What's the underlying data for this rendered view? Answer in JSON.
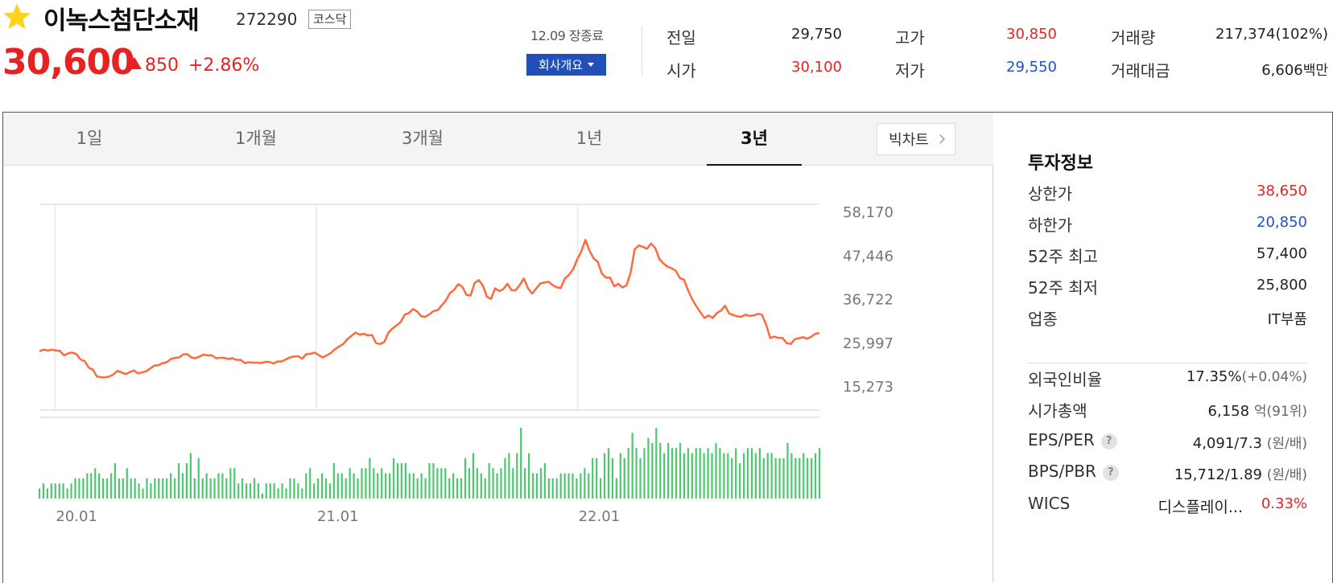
{
  "stock": {
    "name": "이녹스첨단소재",
    "code": "272290",
    "market": "코스닥",
    "price": "30,600",
    "change": "850",
    "change_pct": "+2.86%"
  },
  "status": {
    "market_status": "12.09 장종료",
    "company_button": "회사개요"
  },
  "quote": {
    "prev_close_label": "전일",
    "prev_close": "29,750",
    "open_label": "시가",
    "open": "30,100",
    "high_label": "고가",
    "high": "30,850",
    "low_label": "저가",
    "low": "29,550",
    "volume_label": "거래량",
    "volume": "217,374(102%)",
    "amount_label": "거래대금",
    "amount": "6,606",
    "amount_unit": "백만"
  },
  "tabs": [
    {
      "label": "1일"
    },
    {
      "label": "1개월"
    },
    {
      "label": "3개월"
    },
    {
      "label": "1년"
    },
    {
      "label": "3년"
    }
  ],
  "active_tab": "3년",
  "bigchart_label": "빅차트",
  "colors": {
    "up": "#e62222",
    "down": "#1d51c8",
    "line": "#ff6a3d",
    "volume": "#4cc96e",
    "accent_button": "#2151b8"
  },
  "chart_data": {
    "type": "line",
    "y_ticks": [
      "58,170",
      "47,446",
      "36,722",
      "25,997",
      "15,273"
    ],
    "x_ticks": [
      "20.01",
      "21.01",
      "22.01"
    ],
    "ylim": [
      15273,
      58170
    ],
    "price_series": [
      {
        "name": "",
        "values": [
          23800,
          24200,
          24000,
          24200,
          24000,
          23900,
          22800,
          23300,
          23500,
          23100,
          21800,
          21400,
          19800,
          19300,
          17600,
          17400,
          17400,
          17600,
          18100,
          19000,
          18600,
          18200,
          18700,
          19100,
          18400,
          18600,
          18900,
          19600,
          20300,
          20400,
          20900,
          21100,
          21900,
          22200,
          22300,
          23000,
          23100,
          22300,
          22100,
          22500,
          23000,
          22800,
          22800,
          22100,
          22200,
          22200,
          21900,
          22100,
          21700,
          21700,
          20900,
          21100,
          21000,
          21000,
          20900,
          21200,
          21200,
          20800,
          21300,
          21300,
          21800,
          22300,
          22500,
          22600,
          22000,
          23100,
          23200,
          23500,
          22900,
          22300,
          22800,
          23400,
          24300,
          25000,
          25600,
          26800,
          27600,
          28400,
          27900,
          28100,
          27700,
          27800,
          25800,
          25600,
          26100,
          28400,
          29400,
          30200,
          31000,
          32800,
          33200,
          34200,
          33600,
          32400,
          32300,
          32900,
          33700,
          33900,
          35100,
          36300,
          38100,
          38900,
          40300,
          39700,
          37700,
          37500,
          40600,
          41300,
          40000,
          37200,
          36700,
          39300,
          38600,
          39100,
          40400,
          38800,
          38800,
          40100,
          41700,
          39300,
          38000,
          39200,
          40500,
          40700,
          40900,
          40100,
          39500,
          39400,
          41700,
          42600,
          44000,
          46400,
          48400,
          51200,
          48500,
          46600,
          45800,
          42900,
          41900,
          41900,
          39800,
          40400,
          39500,
          40000,
          43100,
          48900,
          49800,
          49500,
          49000,
          50300,
          49200,
          46500,
          45400,
          44600,
          44200,
          43600,
          41800,
          41400,
          38800,
          36600,
          34900,
          33400,
          32000,
          32600,
          32000,
          33200,
          33800,
          35000,
          33100,
          32700,
          32400,
          32300,
          32800,
          32500,
          32600,
          33000,
          32800,
          30400,
          27100,
          27400,
          27100,
          27100,
          25800,
          25600,
          26800,
          27000,
          27300,
          26900,
          27400,
          28100,
          28300
        ]
      }
    ],
    "volume_series": [
      {
        "name": "",
        "values": [
          2,
          3,
          2,
          3,
          3,
          3,
          3,
          2,
          3,
          4,
          4,
          4,
          5,
          5,
          6,
          5,
          4,
          4,
          5,
          7,
          4,
          4,
          6,
          4,
          4,
          3,
          2,
          4,
          3,
          4,
          4,
          4,
          4,
          5,
          4,
          7,
          5,
          7,
          9,
          4,
          8,
          4,
          5,
          4,
          4,
          5,
          5,
          4,
          6,
          6,
          3,
          4,
          3,
          3,
          4,
          3,
          1,
          3,
          3,
          3,
          2,
          3,
          2,
          4,
          4,
          3,
          2,
          5,
          6,
          3,
          4,
          5,
          4,
          3,
          7,
          5,
          5,
          4,
          6,
          5,
          4,
          6,
          6,
          8,
          6,
          5,
          6,
          5,
          5,
          8,
          7,
          7,
          7,
          5,
          5,
          4,
          5,
          4,
          7,
          7,
          6,
          6,
          6,
          4,
          5,
          4,
          4,
          8,
          6,
          9,
          6,
          5,
          4,
          7,
          6,
          5,
          6,
          8,
          9,
          6,
          9,
          14,
          6,
          9,
          5,
          5,
          6,
          7,
          4,
          4,
          4,
          5,
          5,
          5,
          5,
          4,
          5,
          6,
          5,
          8,
          8,
          4,
          9,
          10,
          8,
          4,
          9,
          8,
          10,
          13,
          10,
          8,
          10,
          12,
          11,
          14,
          11,
          9,
          11,
          10,
          10,
          11,
          9,
          10,
          9,
          10,
          10,
          9,
          10,
          9,
          11,
          10,
          9,
          9,
          8,
          10,
          7,
          9,
          10,
          10,
          9,
          10,
          8,
          9,
          9,
          8,
          8,
          8,
          11,
          9,
          8,
          8,
          9,
          8,
          8,
          9,
          10
        ]
      }
    ],
    "grid": true
  },
  "info": {
    "title": "투자정보",
    "upper_limit_label": "상한가",
    "upper_limit": "38,650",
    "lower_limit_label": "하한가",
    "lower_limit": "20,850",
    "high52_label": "52주 최고",
    "high52": "57,400",
    "low52_label": "52주 최저",
    "low52": "25,800",
    "sector_label": "업종",
    "sector": "IT부품",
    "foreign_label": "외국인비율",
    "foreign": "17.35%",
    "foreign_change": "(+0.04%)",
    "mktcap_label": "시가총액",
    "mktcap": "6,158",
    "mktcap_unit": "억(91위)",
    "eps_per_label": "EPS/PER",
    "eps_per": "4,091/7.3",
    "eps_per_unit": "(원/배)",
    "bps_pbr_label": "BPS/PBR",
    "bps_pbr": "15,712/1.89",
    "bps_pbr_unit": "(원/배)",
    "wics_label": "WICS",
    "wics_name": "디스플레이...",
    "wics_pct": "0.33%",
    "help_glyph": "?"
  }
}
